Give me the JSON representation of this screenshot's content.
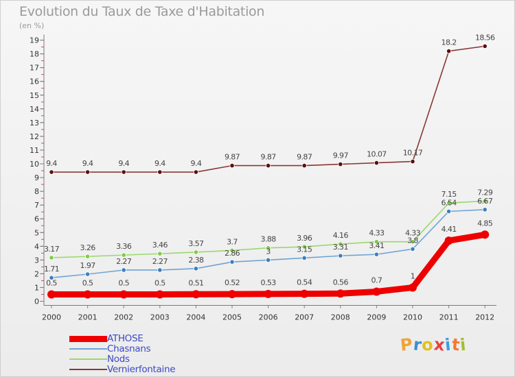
{
  "title": "Evolution du Taux de Taxe d'Habitation",
  "unit": "(en %)",
  "logo": {
    "text": "Proxiti",
    "letters": [
      "P",
      "r",
      "o",
      "x",
      "i",
      "t",
      "i"
    ],
    "colors": [
      "#f0a33a",
      "#3a8fd0",
      "#e0c020",
      "#e84040",
      "#3aa0e0",
      "#f07a30",
      "#a0c030"
    ]
  },
  "chart_data": {
    "type": "line",
    "title": "Evolution du Taux de Taxe d'Habitation",
    "ylabel": "(en %)",
    "xlabel": "",
    "x": [
      "2000",
      "2001",
      "2002",
      "2003",
      "2004",
      "2005",
      "2006",
      "2007",
      "2008",
      "2009",
      "2010",
      "2011",
      "2012"
    ],
    "ylim": [
      0,
      19
    ],
    "yticks": [
      0,
      1,
      2,
      3,
      4,
      5,
      6,
      7,
      8,
      9,
      10,
      11,
      12,
      13,
      14,
      15,
      16,
      17,
      18,
      19
    ],
    "legend_position": "bottom-left",
    "grid": false,
    "series": [
      {
        "name": "ATHOSE",
        "color": "#ee0000",
        "point_color": "#ee0000",
        "values": [
          0.5,
          0.5,
          0.5,
          0.5,
          0.51,
          0.52,
          0.53,
          0.54,
          0.56,
          0.7,
          1,
          4.41,
          4.85
        ],
        "labels": [
          "0.5",
          "0.5",
          "0.5",
          "0.5",
          "0.51",
          "0.52",
          "0.53",
          "0.54",
          "0.56",
          "0.7",
          "1",
          "4.41",
          "4.85"
        ]
      },
      {
        "name": "Chasnans",
        "color": "#6ea3d6",
        "point_color": "#3a7fc0",
        "values": [
          1.71,
          1.97,
          2.27,
          2.27,
          2.38,
          2.86,
          3,
          3.15,
          3.31,
          3.41,
          3.8,
          6.54,
          6.67
        ],
        "labels": [
          "1.71",
          "1.97",
          "2.27",
          "2.27",
          "2.38",
          "2.86",
          "3",
          "3.15",
          "3.31",
          "3.41",
          "3.8",
          "6.54",
          "6.67"
        ]
      },
      {
        "name": "Nods",
        "color": "#9ad86a",
        "point_color": "#7ccc44",
        "values": [
          3.17,
          3.26,
          3.36,
          3.46,
          3.57,
          3.7,
          3.88,
          3.96,
          4.16,
          4.33,
          4.33,
          7.15,
          7.29
        ],
        "labels": [
          "3.17",
          "3.26",
          "3.36",
          "3.46",
          "3.57",
          "3.7",
          "3.88",
          "3.96",
          "4.16",
          "4.33",
          "4.33",
          "7.15",
          "7.29"
        ]
      },
      {
        "name": "Vernierfontaine",
        "color": "#8a3535",
        "point_color": "#5a1010",
        "values": [
          9.4,
          9.4,
          9.4,
          9.4,
          9.4,
          9.87,
          9.87,
          9.87,
          9.97,
          10.07,
          10.17,
          18.2,
          18.56
        ],
        "labels": [
          "9.4",
          "9.4",
          "9.4",
          "9.4",
          "9.4",
          "9.87",
          "9.87",
          "9.87",
          "9.97",
          "10.07",
          "10.17",
          "18.2",
          "18.56"
        ]
      }
    ]
  }
}
